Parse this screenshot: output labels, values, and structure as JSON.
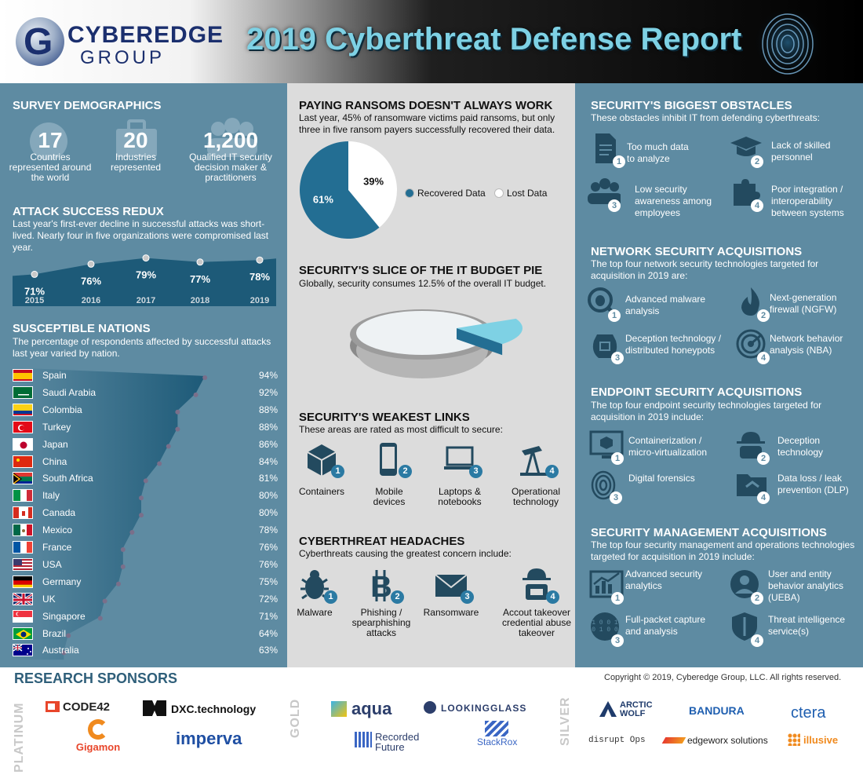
{
  "header": {
    "logo_name": "CYBEREDGE",
    "logo_sub": "GROUP",
    "title": "2019 Cyberthreat Defense Report"
  },
  "demographics": {
    "heading": "SURVEY DEMOGRAPHICS",
    "stats": [
      {
        "value": "17",
        "label": "Countries represented around the world"
      },
      {
        "value": "20",
        "label": "Industries represented"
      },
      {
        "value": "1,200",
        "label": "Qualified IT security decision maker & practitioners"
      }
    ]
  },
  "attack": {
    "heading": "ATTACK SUCCESS REDUX",
    "text": "Last year's first-ever decline in successful attacks was short-lived. Nearly four in five organizations were compromised last year."
  },
  "nations": {
    "heading": "SUSCEPTIBLE NATIONS",
    "text": "The percentage of respondents affected by successful attacks last year varied by nation."
  },
  "ransom": {
    "heading": "PAYING RANSOMS DOESN'T ALWAYS WORK",
    "text": "Last year, 45% of ransomware victims paid ransoms, but only three in five ransom payers successfully recovered their data."
  },
  "budget": {
    "heading": "SECURITY'S SLICE OF THE IT BUDGET PIE",
    "text": "Globally, security consumes 12.5% of the overall IT budget."
  },
  "weakest": {
    "heading": "SECURITY'S WEAKEST LINKS",
    "text": "These areas are rated as most difficult to secure:",
    "items": [
      {
        "n": "1",
        "label": "Containers"
      },
      {
        "n": "2",
        "label": "Mobile\ndevices"
      },
      {
        "n": "3",
        "label": "Laptops &\nnotebooks"
      },
      {
        "n": "4",
        "label": "Operational\ntechnology"
      }
    ]
  },
  "headaches": {
    "heading": "CYBERTHREAT HEADACHES",
    "text": "Cyberthreats causing the greatest concern include:",
    "items": [
      {
        "n": "1",
        "label": "Malware"
      },
      {
        "n": "2",
        "label": "Phishing /\nspearphishing\nattacks"
      },
      {
        "n": "3",
        "label": "Ransomware"
      },
      {
        "n": "4",
        "label": "Accout takeover\ncredential abuse\ntakeover"
      }
    ]
  },
  "obstacles": {
    "heading": "SECURITY'S BIGGEST OBSTACLES",
    "text": "These obstacles inhibit IT from defending cyberthreats:",
    "items": [
      {
        "n": "1",
        "label": "Too much data\nto analyze",
        "icon": "document-icon"
      },
      {
        "n": "2",
        "label": "Lack of skilled\npersonnel",
        "icon": "graduation-cap-icon"
      },
      {
        "n": "3",
        "label": "Low security\nawareness among\nemployees",
        "icon": "people-icon"
      },
      {
        "n": "4",
        "label": "Poor integration /\ninteroperability\nbetween systems",
        "icon": "puzzle-icon"
      }
    ]
  },
  "network": {
    "heading": "NETWORK SECURITY ACQUISITIONS",
    "text": "The top four network security technologies targeted for acquisition in 2019 are:",
    "items": [
      {
        "n": "1",
        "label": "Advanced malware\nanalysis",
        "icon": "bug-magnifier-icon"
      },
      {
        "n": "2",
        "label": "Next-generation\nfirewall (NGFW)",
        "icon": "flame-icon"
      },
      {
        "n": "3",
        "label": "Deception technology /\ndistributed honeypots",
        "icon": "honeypot-icon"
      },
      {
        "n": "4",
        "label": "Network behavior\nanalysis (NBA)",
        "icon": "radar-icon"
      }
    ]
  },
  "endpoint": {
    "heading": "ENDPOINT SECURITY ACQUISITIONS",
    "text": "The top four endpoint security technologies targeted for acquisition in 2019 include:",
    "items": [
      {
        "n": "1",
        "label": "Containerization /\nmicro-virtualization",
        "icon": "monitor-box-icon"
      },
      {
        "n": "2",
        "label": "Deception\ntechnology",
        "icon": "spy-icon"
      },
      {
        "n": "3",
        "label": "Digital forensics",
        "icon": "fingerprint-icon"
      },
      {
        "n": "4",
        "label": "Data loss / leak\nprevention (DLP)",
        "icon": "folder-icon"
      }
    ]
  },
  "management": {
    "heading": "SECURITY MANAGEMENT ACQUISITIONS",
    "text": "The top four security management and operations technologies targeted for acquisition in 2019 include:",
    "items": [
      {
        "n": "1",
        "label": "Advanced security\nanalytics",
        "icon": "chart-icon"
      },
      {
        "n": "2",
        "label": "User and entity\nbehavior analytics\n(UEBA)",
        "icon": "user-icon"
      },
      {
        "n": "3",
        "label": "Full-packet capture\nand analysis",
        "icon": "binary-icon"
      },
      {
        "n": "4",
        "label": "Threat intelligence\nservice(s)",
        "icon": "shield-icon"
      }
    ]
  },
  "footer": {
    "heading": "RESEARCH SPONSORS",
    "copyright": "Copyright © 2019, Cyberedge Group, LLC. All rights reserved.",
    "tiers": [
      "PLATINUM",
      "GOLD",
      "SILVER"
    ],
    "platinum": [
      "CODE42",
      "DXC.technology",
      "Gigamon",
      "imperva"
    ],
    "gold": [
      "aqua",
      "LOOKINGGLASS",
      "Recorded\nFuture",
      "StackRox"
    ],
    "silver": [
      "ARCTIC\nWOLF",
      "BANDURA",
      "ctera",
      "disrupt Ops",
      "edgeworx solutions",
      "illusive"
    ]
  },
  "colors": {
    "panel_blue": "#5e8ba2",
    "pie_dark": "#236e93",
    "title_cyan": "#7ed1e4",
    "badge_blue": "#2b7aa3"
  },
  "chart_data": [
    {
      "type": "area",
      "title": "ATTACK SUCCESS REDUX",
      "x": [
        "2015",
        "2016",
        "2017",
        "2018",
        "2019"
      ],
      "values": [
        71,
        76,
        79,
        77,
        78
      ],
      "value_labels": [
        "71%",
        "76%",
        "79%",
        "77%",
        "78%"
      ]
    },
    {
      "type": "bar",
      "title": "SUSCEPTIBLE NATIONS",
      "categories": [
        "Spain",
        "Saudi Arabia",
        "Colombia",
        "Turkey",
        "Japan",
        "China",
        "South Africa",
        "Italy",
        "Canada",
        "Mexico",
        "France",
        "USA",
        "Germany",
        "UK",
        "Singapore",
        "Brazil",
        "Australia"
      ],
      "values": [
        94,
        92,
        88,
        88,
        86,
        84,
        81,
        80,
        80,
        78,
        76,
        76,
        75,
        72,
        71,
        64,
        63
      ],
      "value_labels": [
        "94%",
        "92%",
        "88%",
        "88%",
        "86%",
        "84%",
        "81%",
        "80%",
        "80%",
        "78%",
        "76%",
        "76%",
        "75%",
        "72%",
        "71%",
        "64%",
        "63%"
      ]
    },
    {
      "type": "pie",
      "title": "PAYING RANSOMS DOESN'T ALWAYS WORK",
      "categories": [
        "Recovered Data",
        "Lost Data"
      ],
      "values": [
        61,
        39
      ],
      "value_labels": [
        "61%",
        "39%"
      ],
      "legend": "right"
    },
    {
      "type": "pie",
      "title": "SECURITY'S SLICE OF THE IT BUDGET PIE",
      "categories": [
        "Security",
        "Other IT"
      ],
      "values": [
        12.5,
        87.5
      ]
    }
  ]
}
